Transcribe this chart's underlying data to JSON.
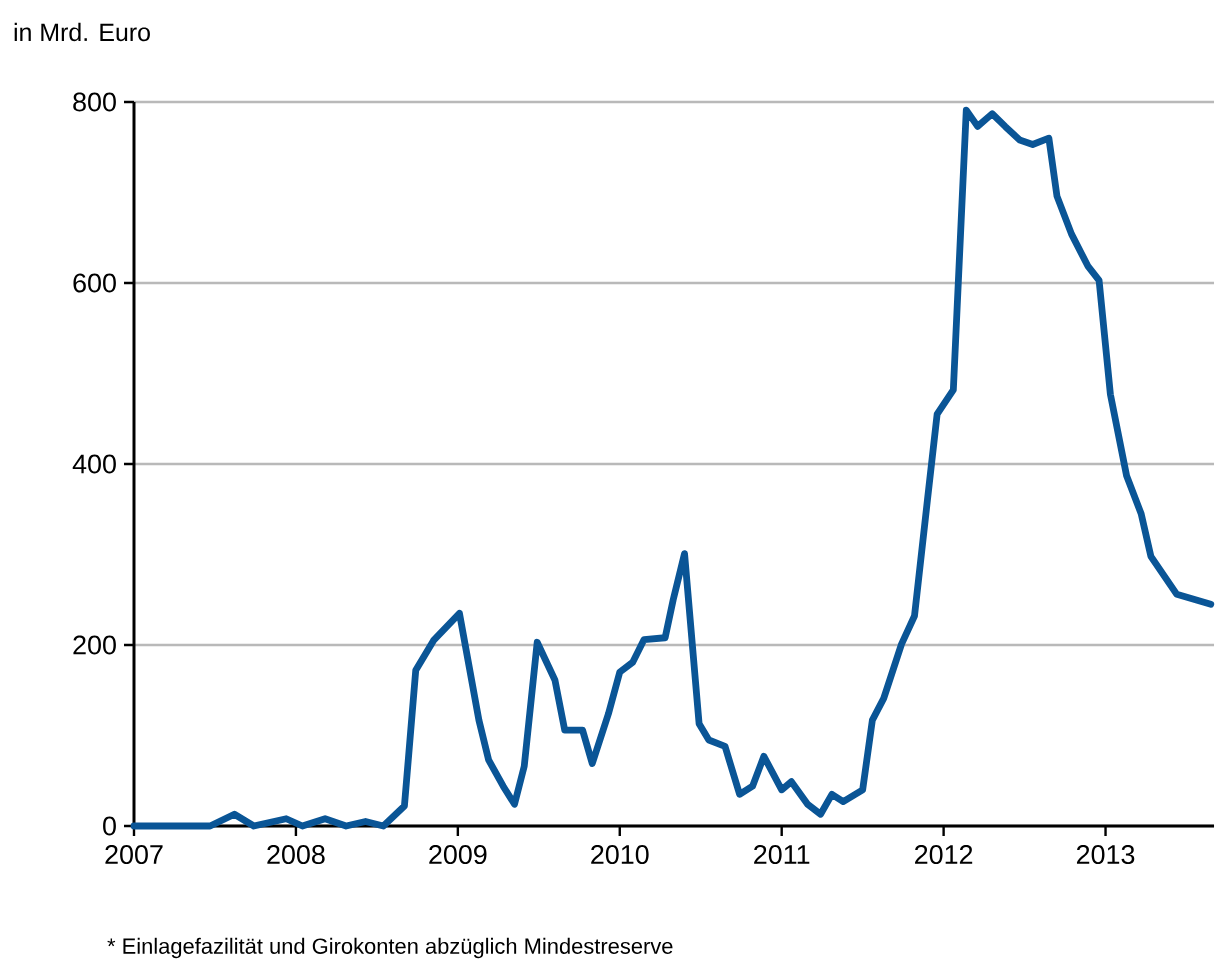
{
  "chart_data": {
    "type": "line",
    "ylabel": "in Mrd. Euro",
    "annotations": [
      "* Einlagefazilität und Girokonten abzüglich Mindestreserve"
    ],
    "x": [
      2007.0,
      2007.47,
      2007.62,
      2007.74,
      2007.94,
      2008.04,
      2008.18,
      2008.31,
      2008.43,
      2008.54,
      2008.67,
      2008.74,
      2008.85,
      2009.01,
      2009.13,
      2009.19,
      2009.28,
      2009.35,
      2009.41,
      2009.49,
      2009.6,
      2009.66,
      2009.77,
      2009.83,
      2009.93,
      2010.0,
      2010.08,
      2010.15,
      2010.28,
      2010.33,
      2010.4,
      2010.49,
      2010.55,
      2010.65,
      2010.74,
      2010.82,
      2010.89,
      2011.0,
      2011.06,
      2011.16,
      2011.24,
      2011.31,
      2011.38,
      2011.5,
      2011.56,
      2011.63,
      2011.74,
      2011.82,
      2011.9,
      2011.96,
      2012.06,
      2012.14,
      2012.21,
      2012.3,
      2012.38,
      2012.47,
      2012.55,
      2012.65,
      2012.7,
      2012.79,
      2012.89,
      2012.96,
      2013.03,
      2013.13,
      2013.22,
      2013.28,
      2013.44,
      2013.65
    ],
    "series": [
      {
        "color": "#0a5596",
        "values": [
          0,
          0,
          13,
          0,
          8,
          0,
          8,
          0,
          5,
          0,
          22,
          172,
          205,
          235,
          117,
          73,
          44,
          24,
          66,
          203,
          161,
          106,
          106,
          69,
          124,
          170,
          181,
          206,
          208,
          250,
          301,
          113,
          95,
          88,
          35,
          44,
          77,
          40,
          49,
          24,
          13,
          35,
          27,
          40,
          117,
          141,
          201,
          232,
          360,
          455,
          482,
          791,
          773,
          787,
          773,
          758,
          753,
          760,
          696,
          654,
          619,
          603,
          477,
          387,
          345,
          298,
          256,
          245
        ]
      }
    ],
    "xlim": [
      2007,
      2013.67
    ],
    "xticks": [
      2007,
      2008,
      2009,
      2010,
      2011,
      2012,
      2013
    ],
    "ylim": [
      0,
      800
    ],
    "yticks": [
      0,
      200,
      400,
      600,
      800
    ],
    "grid": "y",
    "marker": "none",
    "line_style": "solid"
  }
}
